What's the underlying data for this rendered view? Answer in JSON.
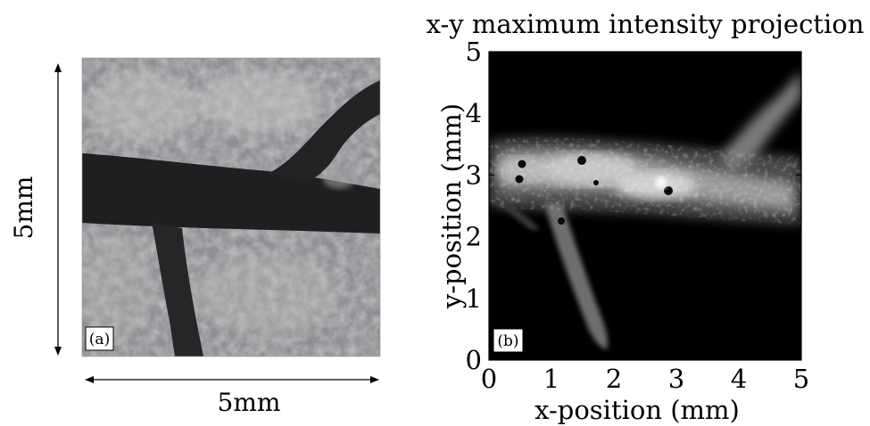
{
  "figure": {
    "panel_a": {
      "tag": "(a)",
      "height_label": "5mm",
      "width_label": "5mm"
    },
    "panel_b": {
      "tag": "(b)"
    }
  },
  "chart_data": {
    "type": "heatmap",
    "title": "x-y maximum intensity projection",
    "xlabel": "x-position (mm)",
    "ylabel": "y-position (mm)",
    "xlim": [
      0,
      5
    ],
    "ylim": [
      0,
      5
    ],
    "x_ticks": [
      "0",
      "1",
      "2",
      "3",
      "4",
      "5"
    ],
    "y_ticks": [
      "0",
      "1",
      "2",
      "3",
      "4",
      "5"
    ],
    "colormap": "grayscale",
    "grid": false
  }
}
